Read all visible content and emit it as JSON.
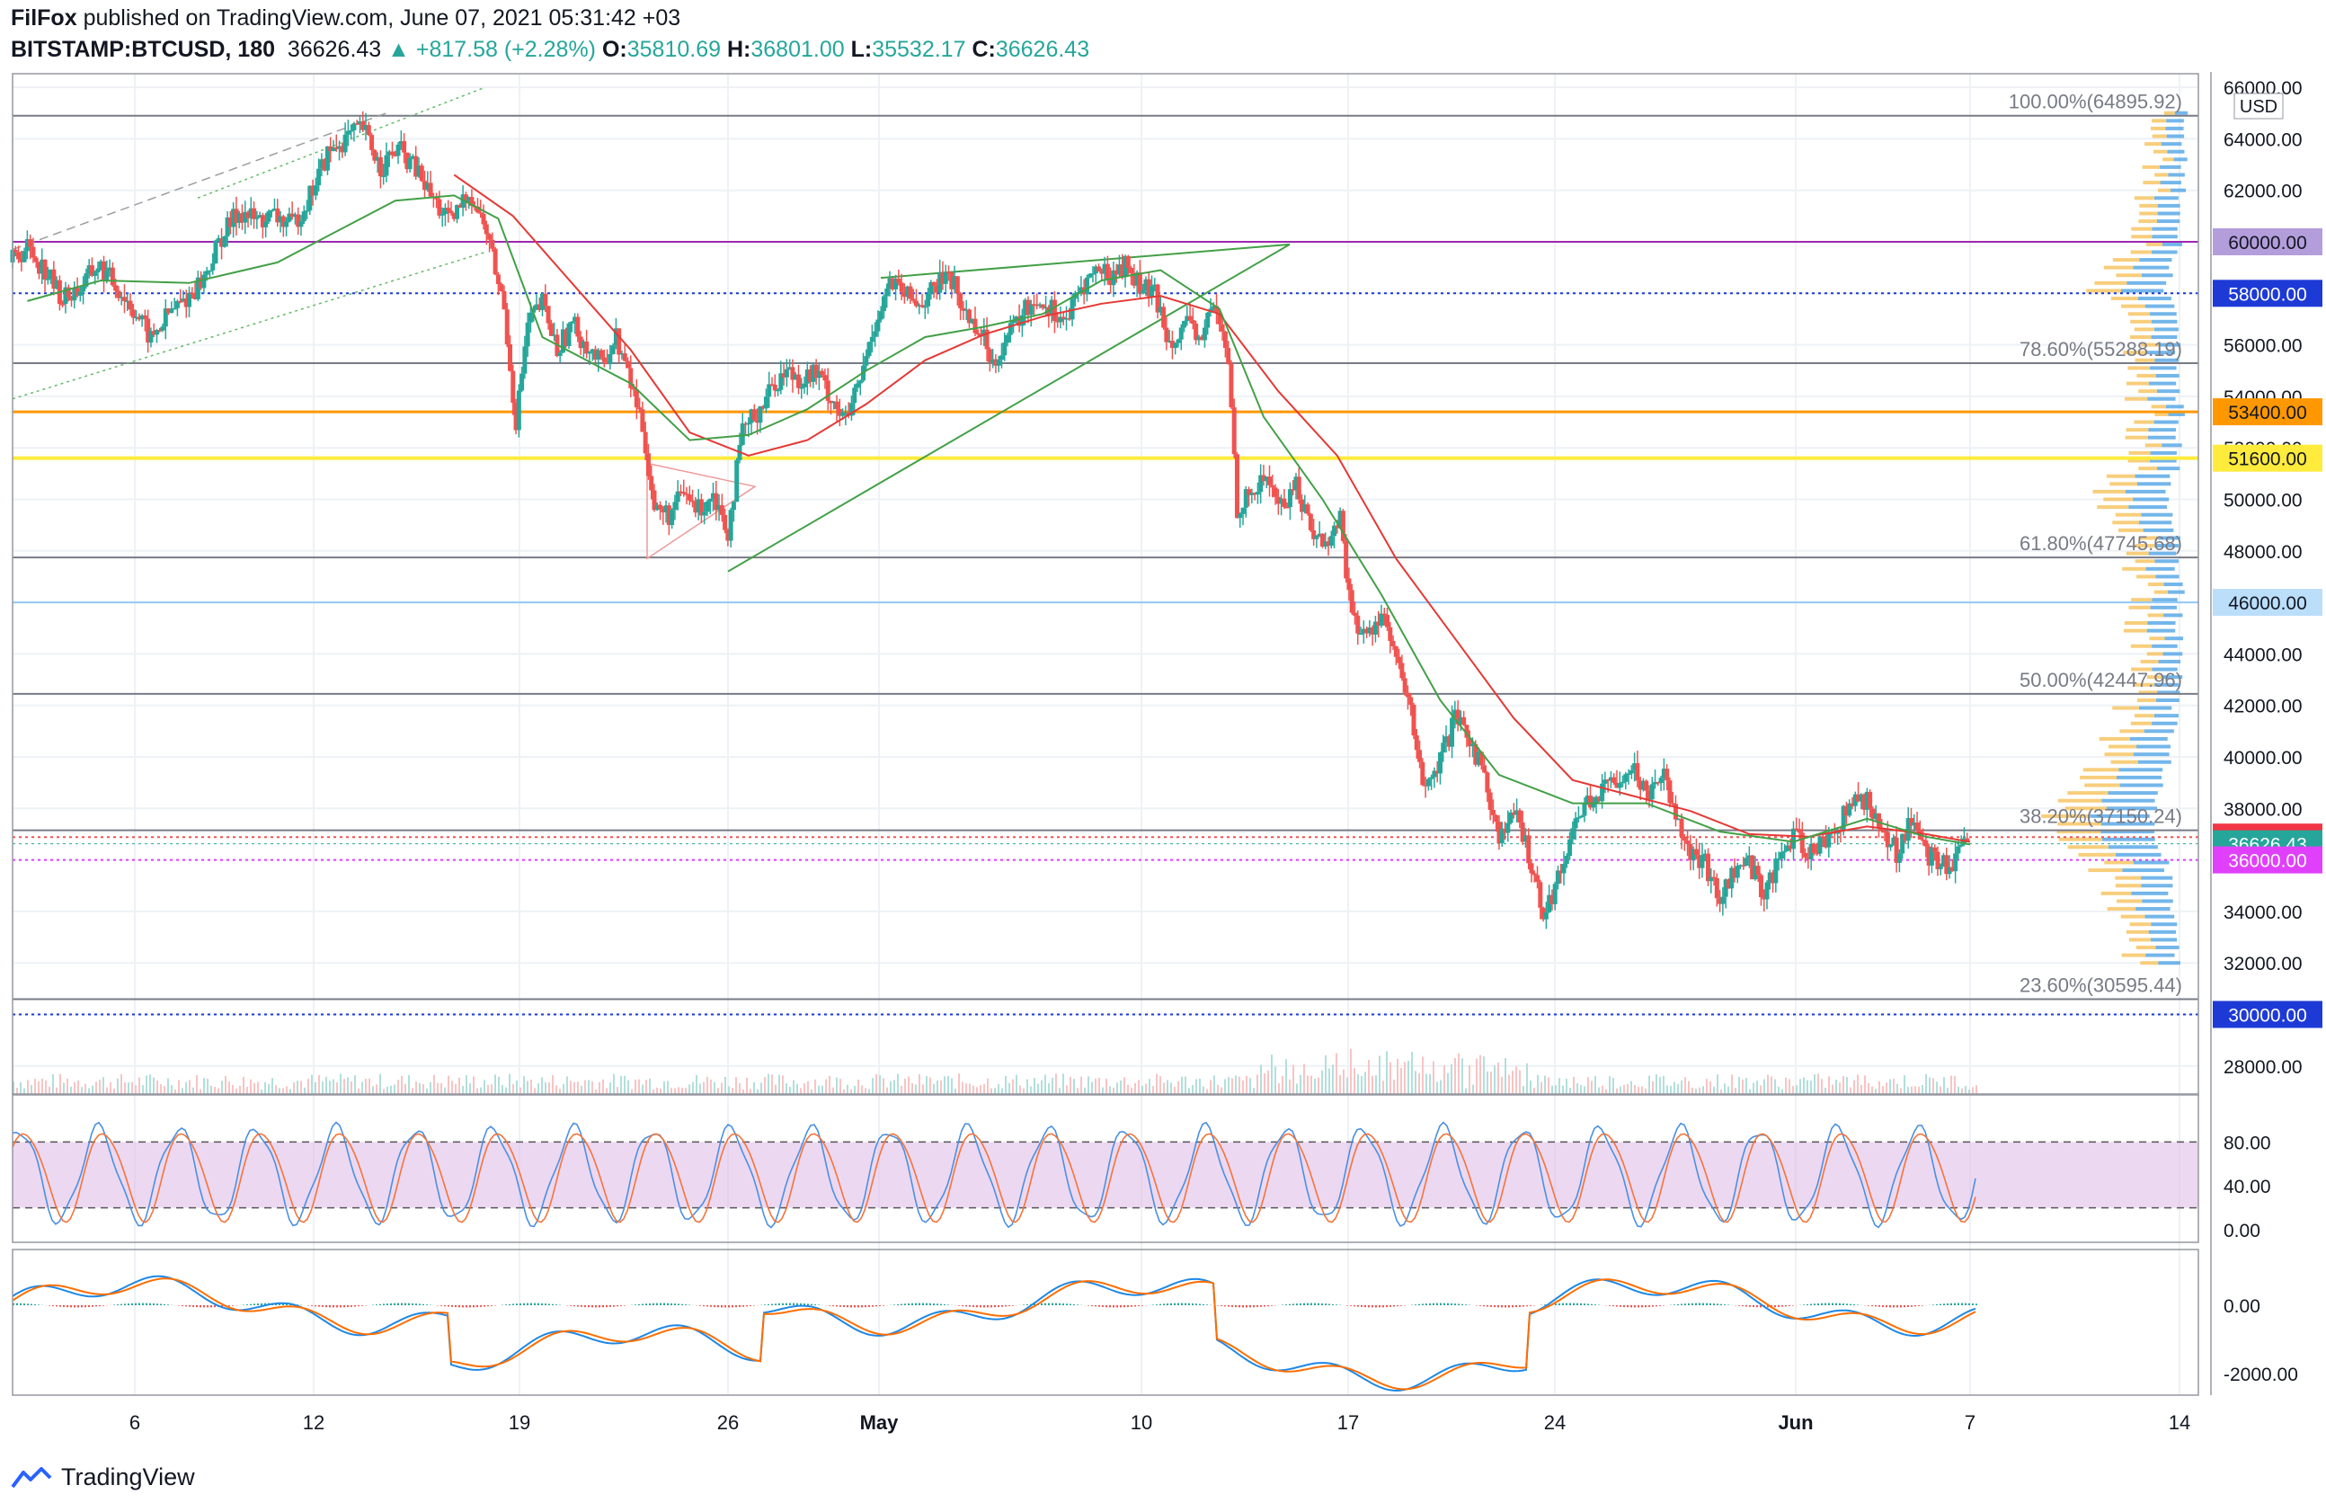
{
  "header": {
    "author": "FilFox",
    "published": "published on TradingView.com, June 07, 2021 05:31:42 +03",
    "symbol": "BITSTAMP:BTCUSD, 180",
    "last": "36626.43",
    "change": "▲ +817.58 (+2.28%)",
    "o_label": "O:",
    "o_val": "35810.69",
    "h_label": "H:",
    "h_val": "36801.00",
    "l_label": "L:",
    "l_val": "35532.17",
    "c_label": "C:",
    "c_val": "36626.43"
  },
  "footer": {
    "brand": "TradingView"
  },
  "colors": {
    "up": "#26a69a",
    "down": "#ef5350",
    "ma_red": "#e53935",
    "ma_green": "#43a047",
    "fib_line": "#787b86",
    "purple_line": "#9c27b0",
    "orange_line": "#ff9800",
    "yellow_line": "#ffeb3b",
    "blue_dotted": "#1a237e",
    "light_blue_line": "#90caf9",
    "stoch_k": "#4a90e2",
    "stoch_d": "#f4743b",
    "stoch_band": "#e1bee7",
    "macd": "#1e88e5",
    "signal": "#ff6d00"
  },
  "chart_data": {
    "type": "candlestick",
    "symbol": "BITSTAMP:BTCUSD",
    "interval": "180",
    "currency": "USD",
    "x_ticks": [
      "6",
      "12",
      "19",
      "26",
      "May",
      "10",
      "17",
      "24",
      "Jun",
      "7",
      "14"
    ],
    "y_ticks": [
      "66000.00",
      "64000.00",
      "62000.00",
      "60000.00",
      "58000.00",
      "56000.00",
      "54000.00",
      "53400.00",
      "52000.00",
      "51600.00",
      "50000.00",
      "48000.00",
      "46000.00",
      "44000.00",
      "42000.00",
      "40000.00",
      "38000.00",
      "36886.72",
      "36626.43",
      "36000.00",
      "34000.00",
      "32000.00",
      "30000.00",
      "28000.00"
    ],
    "price_range": [
      27000,
      66200
    ],
    "price_path": [
      [
        0,
        59200
      ],
      [
        12,
        59800
      ],
      [
        24,
        58900
      ],
      [
        36,
        57800
      ],
      [
        48,
        58200
      ],
      [
        60,
        59100
      ],
      [
        72,
        58300
      ],
      [
        84,
        57400
      ],
      [
        96,
        56200
      ],
      [
        108,
        57200
      ],
      [
        120,
        57800
      ],
      [
        132,
        58600
      ],
      [
        144,
        60200
      ],
      [
        156,
        61200
      ],
      [
        168,
        60800
      ],
      [
        180,
        61000
      ],
      [
        192,
        60600
      ],
      [
        204,
        61800
      ],
      [
        216,
        63400
      ],
      [
        228,
        64000
      ],
      [
        240,
        64400
      ],
      [
        252,
        62900
      ],
      [
        264,
        63600
      ],
      [
        276,
        62800
      ],
      [
        288,
        61600
      ],
      [
        300,
        60700
      ],
      [
        312,
        62000
      ],
      [
        324,
        60400
      ],
      [
        336,
        57400
      ],
      [
        344,
        53000
      ],
      [
        352,
        56800
      ],
      [
        362,
        57600
      ],
      [
        372,
        55800
      ],
      [
        382,
        56800
      ],
      [
        392,
        56000
      ],
      [
        402,
        55200
      ],
      [
        412,
        56300
      ],
      [
        422,
        54500
      ],
      [
        430,
        52900
      ],
      [
        438,
        49600
      ],
      [
        448,
        49400
      ],
      [
        458,
        50200
      ],
      [
        468,
        49600
      ],
      [
        478,
        50300
      ],
      [
        488,
        48800
      ],
      [
        498,
        52600
      ],
      [
        508,
        53400
      ],
      [
        518,
        54400
      ],
      [
        528,
        55000
      ],
      [
        538,
        54700
      ],
      [
        548,
        54900
      ],
      [
        558,
        54000
      ],
      [
        568,
        53000
      ],
      [
        578,
        54600
      ],
      [
        588,
        56900
      ],
      [
        598,
        58400
      ],
      [
        608,
        57900
      ],
      [
        618,
        57600
      ],
      [
        628,
        58100
      ],
      [
        638,
        58900
      ],
      [
        648,
        57300
      ],
      [
        658,
        56700
      ],
      [
        668,
        55400
      ],
      [
        678,
        56300
      ],
      [
        688,
        57200
      ],
      [
        698,
        57800
      ],
      [
        708,
        57400
      ],
      [
        718,
        56900
      ],
      [
        728,
        58200
      ],
      [
        738,
        58900
      ],
      [
        748,
        58700
      ],
      [
        758,
        59100
      ],
      [
        768,
        58300
      ],
      [
        778,
        57900
      ],
      [
        788,
        56200
      ],
      [
        798,
        56800
      ],
      [
        808,
        56200
      ],
      [
        818,
        57500
      ],
      [
        828,
        55400
      ],
      [
        834,
        49700
      ],
      [
        844,
        50200
      ],
      [
        854,
        50900
      ],
      [
        864,
        49700
      ],
      [
        874,
        50600
      ],
      [
        884,
        48900
      ],
      [
        894,
        48200
      ],
      [
        904,
        49300
      ],
      [
        912,
        45400
      ],
      [
        922,
        44600
      ],
      [
        932,
        45700
      ],
      [
        942,
        43700
      ],
      [
        952,
        41700
      ],
      [
        962,
        38500
      ],
      [
        972,
        39800
      ],
      [
        982,
        41400
      ],
      [
        992,
        40700
      ],
      [
        1002,
        39300
      ],
      [
        1012,
        36800
      ],
      [
        1022,
        37800
      ],
      [
        1032,
        36300
      ],
      [
        1042,
        34000
      ],
      [
        1052,
        35200
      ],
      [
        1062,
        37300
      ],
      [
        1072,
        38300
      ],
      [
        1082,
        38600
      ],
      [
        1092,
        39200
      ],
      [
        1102,
        39700
      ],
      [
        1112,
        38600
      ],
      [
        1122,
        39500
      ],
      [
        1132,
        38000
      ],
      [
        1142,
        36200
      ],
      [
        1152,
        35800
      ],
      [
        1162,
        34500
      ],
      [
        1172,
        35600
      ],
      [
        1182,
        35900
      ],
      [
        1192,
        34700
      ],
      [
        1202,
        36000
      ],
      [
        1212,
        36900
      ],
      [
        1222,
        36300
      ],
      [
        1232,
        36700
      ],
      [
        1242,
        37300
      ],
      [
        1252,
        38200
      ],
      [
        1262,
        38400
      ],
      [
        1272,
        37000
      ],
      [
        1282,
        36300
      ],
      [
        1292,
        37700
      ],
      [
        1302,
        36200
      ],
      [
        1312,
        35800
      ],
      [
        1322,
        35900
      ],
      [
        1330,
        36626
      ]
    ],
    "ma_red": [
      [
        300,
        62600
      ],
      [
        340,
        61000
      ],
      [
        380,
        58400
      ],
      [
        420,
        55800
      ],
      [
        460,
        52600
      ],
      [
        500,
        51700
      ],
      [
        540,
        52300
      ],
      [
        580,
        53700
      ],
      [
        620,
        55400
      ],
      [
        660,
        56400
      ],
      [
        700,
        57100
      ],
      [
        740,
        57600
      ],
      [
        780,
        57900
      ],
      [
        820,
        57200
      ],
      [
        860,
        54200
      ],
      [
        900,
        51700
      ],
      [
        940,
        47700
      ],
      [
        980,
        44600
      ],
      [
        1020,
        41500
      ],
      [
        1060,
        39100
      ],
      [
        1100,
        38500
      ],
      [
        1140,
        37900
      ],
      [
        1180,
        37000
      ],
      [
        1220,
        36900
      ],
      [
        1260,
        37300
      ],
      [
        1300,
        37000
      ],
      [
        1330,
        36700
      ]
    ],
    "ma_green": [
      [
        10,
        57700
      ],
      [
        60,
        58500
      ],
      [
        120,
        58400
      ],
      [
        180,
        59200
      ],
      [
        220,
        60400
      ],
      [
        260,
        61600
      ],
      [
        300,
        61800
      ],
      [
        330,
        60900
      ],
      [
        360,
        56300
      ],
      [
        420,
        54500
      ],
      [
        460,
        52300
      ],
      [
        500,
        52500
      ],
      [
        540,
        53500
      ],
      [
        580,
        55000
      ],
      [
        620,
        56300
      ],
      [
        660,
        56700
      ],
      [
        700,
        57200
      ],
      [
        740,
        58500
      ],
      [
        780,
        58900
      ],
      [
        820,
        57400
      ],
      [
        850,
        53200
      ],
      [
        890,
        50000
      ],
      [
        930,
        46300
      ],
      [
        970,
        42200
      ],
      [
        1010,
        39300
      ],
      [
        1060,
        38200
      ],
      [
        1110,
        38200
      ],
      [
        1160,
        37100
      ],
      [
        1210,
        36700
      ],
      [
        1260,
        37600
      ],
      [
        1300,
        36900
      ],
      [
        1330,
        36600
      ]
    ],
    "horizontal_levels": [
      {
        "price": 64895.92,
        "label": "100.00%(64895.92)",
        "kind": "fib"
      },
      {
        "price": 60000.0,
        "label": "60000.00",
        "kind": "purple"
      },
      {
        "price": 58000.0,
        "label": "58000.00",
        "kind": "blue_dotted"
      },
      {
        "price": 55288.19,
        "label": "78.60%(55288.19)",
        "kind": "fib"
      },
      {
        "price": 53400.0,
        "label": "53400.00",
        "kind": "orange"
      },
      {
        "price": 51600.0,
        "label": "51600.00",
        "kind": "yellow"
      },
      {
        "price": 47745.68,
        "label": "61.80%(47745.68)",
        "kind": "fib"
      },
      {
        "price": 46000.0,
        "label": "46000.00",
        "kind": "light_blue"
      },
      {
        "price": 42447.96,
        "label": "50.00%(42447.96)",
        "kind": "fib"
      },
      {
        "price": 37150.0,
        "label": "38.20%(37150.24)",
        "kind": "fib"
      },
      {
        "price": 36886.72,
        "label": "36886.72",
        "kind": "red_tag"
      },
      {
        "price": 36626.43,
        "label": "36626.43",
        "kind": "green_tag"
      },
      {
        "price": 36000.0,
        "label": "36000.00",
        "kind": "magenta"
      },
      {
        "price": 30595.44,
        "label": "23.60%(30595.44)",
        "kind": "fib"
      },
      {
        "price": 30000.0,
        "label": "30000.00",
        "kind": "blue_dotted"
      }
    ],
    "stochastic": {
      "y_ticks": [
        "80.00",
        "40.00",
        "0.00"
      ],
      "range": [
        0,
        100
      ],
      "band": [
        20,
        80
      ]
    },
    "macd": {
      "y_ticks": [
        "0.00",
        "-2000.00"
      ],
      "range": [
        -2600,
        1600
      ]
    }
  }
}
